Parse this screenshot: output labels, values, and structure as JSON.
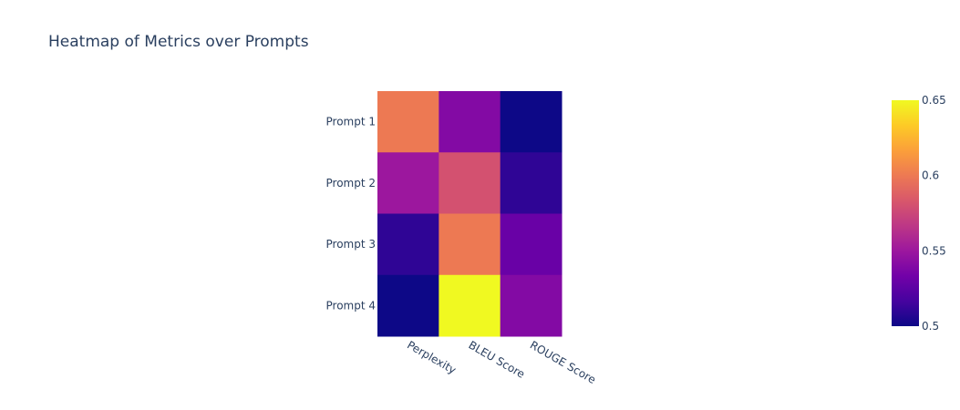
{
  "chart_data": {
    "type": "heatmap",
    "title": "Heatmap of Metrics over Prompts",
    "xlabel": "",
    "ylabel": "",
    "x": [
      "Perplexity",
      "BLEU Score",
      "ROUGE Score"
    ],
    "y": [
      "Prompt 1",
      "Prompt 2",
      "Prompt 3",
      "Prompt 4"
    ],
    "z": [
      [
        0.6,
        0.54,
        0.5
      ],
      [
        0.55,
        0.58,
        0.51
      ],
      [
        0.51,
        0.6,
        0.53
      ],
      [
        0.5,
        0.65,
        0.54
      ]
    ],
    "zlim": [
      0.5,
      0.65
    ],
    "colorscale": "plasma",
    "colorbar": {
      "ticks": [
        0.5,
        0.55,
        0.6,
        0.65
      ],
      "tick_labels": [
        "0.5",
        "0.55",
        "0.6",
        "0.65"
      ]
    },
    "grid": false
  }
}
